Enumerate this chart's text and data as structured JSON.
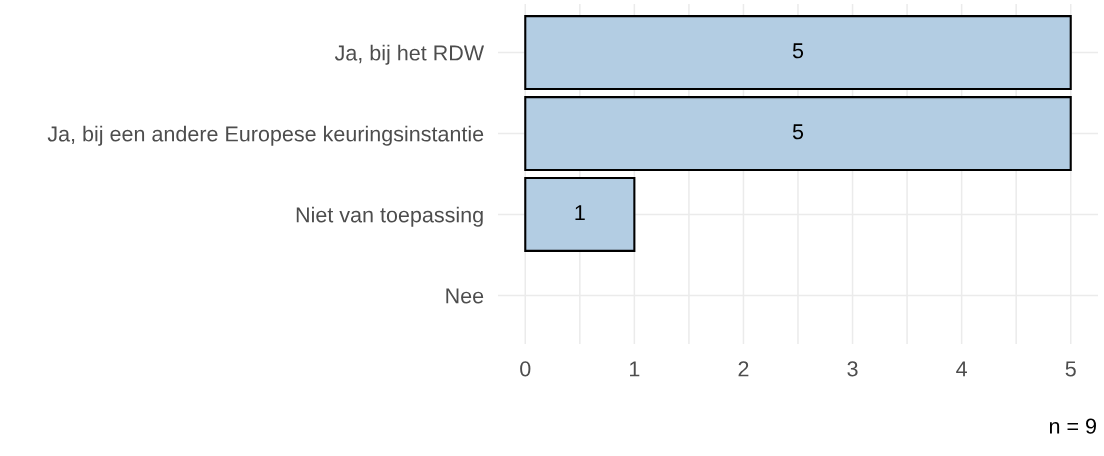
{
  "chart_data": {
    "type": "bar",
    "orientation": "horizontal",
    "categories": [
      "Ja, bij het RDW",
      "Ja, bij een andere Europese keuringsinstantie",
      "Niet van toepassing",
      "Nee"
    ],
    "values": [
      5,
      5,
      1,
      0
    ],
    "color": "#b3cde3",
    "value_labels": [
      "5",
      "5",
      "1",
      null
    ],
    "xlim": [
      -0.25,
      5.25
    ],
    "xticks": [
      0,
      {
        "value": 0.5,
        "label": null
      },
      1,
      {
        "value": 1.5,
        "label": null
      },
      2,
      {
        "value": 2.5,
        "label": null
      },
      3,
      {
        "value": 3.5,
        "label": null
      },
      4,
      {
        "value": 4.5,
        "label": null
      },
      5
    ],
    "grid": true,
    "annotations": [
      "n = 9"
    ]
  }
}
